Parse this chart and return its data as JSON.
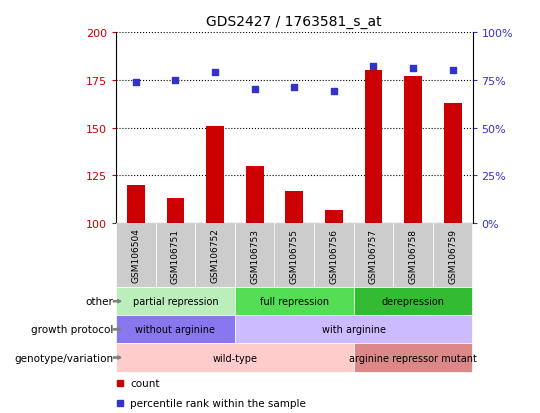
{
  "title": "GDS2427 / 1763581_s_at",
  "samples": [
    "GSM106504",
    "GSM106751",
    "GSM106752",
    "GSM106753",
    "GSM106755",
    "GSM106756",
    "GSM106757",
    "GSM106758",
    "GSM106759"
  ],
  "bar_values": [
    120,
    113,
    151,
    130,
    117,
    107,
    180,
    177,
    163
  ],
  "dot_values": [
    74,
    75,
    79,
    70,
    71,
    69,
    82,
    81,
    80
  ],
  "ylim_left": [
    100,
    200
  ],
  "ylim_right": [
    0,
    100
  ],
  "yticks_left": [
    100,
    125,
    150,
    175,
    200
  ],
  "yticks_right": [
    0,
    25,
    50,
    75,
    100
  ],
  "bar_color": "#cc0000",
  "dot_color": "#3333cc",
  "annotation_rows": [
    {
      "label": "other",
      "segments": [
        {
          "text": "partial repression",
          "start": 0,
          "end": 3,
          "color": "#bbeebb"
        },
        {
          "text": "full repression",
          "start": 3,
          "end": 6,
          "color": "#55dd55"
        },
        {
          "text": "derepression",
          "start": 6,
          "end": 9,
          "color": "#33bb33"
        }
      ]
    },
    {
      "label": "growth protocol",
      "segments": [
        {
          "text": "without arginine",
          "start": 0,
          "end": 3,
          "color": "#8877ee"
        },
        {
          "text": "with arginine",
          "start": 3,
          "end": 9,
          "color": "#ccbbff"
        }
      ]
    },
    {
      "label": "genotype/variation",
      "segments": [
        {
          "text": "wild-type",
          "start": 0,
          "end": 6,
          "color": "#ffcccc"
        },
        {
          "text": "arginine repressor mutant",
          "start": 6,
          "end": 9,
          "color": "#dd8888"
        }
      ]
    }
  ],
  "legend_items": [
    {
      "label": "count",
      "color": "#cc0000"
    },
    {
      "label": "percentile rank within the sample",
      "color": "#3333cc"
    }
  ],
  "tick_label_bg": "#cccccc",
  "fig_bg": "#ffffff"
}
